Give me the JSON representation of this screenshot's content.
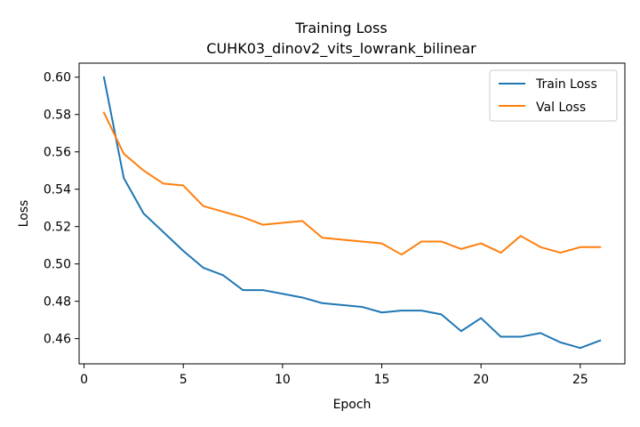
{
  "chart_data": {
    "type": "line",
    "title": "Training Loss",
    "subtitle": "CUHK03_dinov2_vits_lowrank_bilinear",
    "xlabel": "Epoch",
    "ylabel": "Loss",
    "xlim": [
      -0.25,
      27.25
    ],
    "ylim": [
      0.4465,
      0.6075
    ],
    "xticks": [
      0,
      5,
      10,
      15,
      20,
      25
    ],
    "yticks": [
      0.46,
      0.48,
      0.5,
      0.52,
      0.54,
      0.56,
      0.58,
      0.6
    ],
    "ytick_labels": [
      "0.46",
      "0.48",
      "0.50",
      "0.52",
      "0.54",
      "0.56",
      "0.58",
      "0.60"
    ],
    "grid": false,
    "legend_position": "top-right",
    "x": [
      1,
      2,
      3,
      4,
      5,
      6,
      7,
      8,
      9,
      10,
      11,
      12,
      13,
      14,
      15,
      16,
      17,
      18,
      19,
      20,
      21,
      22,
      23,
      24,
      25,
      26
    ],
    "series": [
      {
        "name": "Train Loss",
        "color": "#1f77b4",
        "values": [
          0.6,
          0.546,
          0.527,
          0.517,
          0.507,
          0.498,
          0.494,
          0.486,
          0.486,
          0.484,
          0.482,
          0.479,
          0.478,
          0.477,
          0.474,
          0.475,
          0.475,
          0.473,
          0.464,
          0.471,
          0.461,
          0.461,
          0.463,
          0.458,
          0.455,
          0.459
        ]
      },
      {
        "name": "Val Loss",
        "color": "#ff7f0e",
        "values": [
          0.581,
          0.559,
          0.55,
          0.543,
          0.542,
          0.531,
          0.528,
          0.525,
          0.521,
          0.522,
          0.523,
          0.514,
          0.513,
          0.512,
          0.511,
          0.505,
          0.512,
          0.512,
          0.508,
          0.511,
          0.506,
          0.515,
          0.509,
          0.506,
          0.509,
          0.509
        ]
      }
    ]
  }
}
